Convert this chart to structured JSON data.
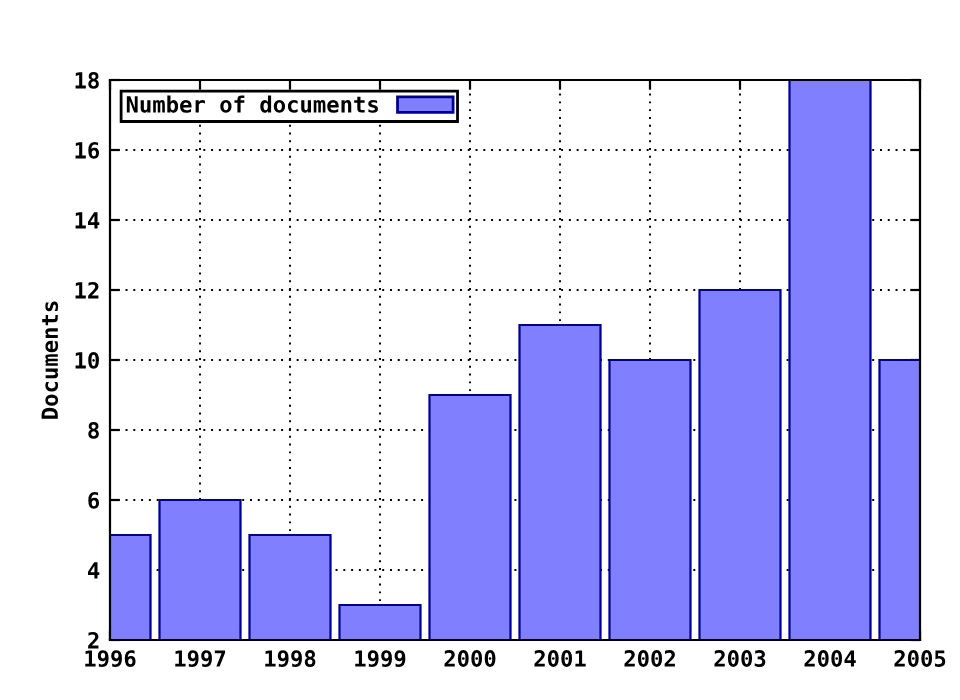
{
  "chart_data": {
    "type": "bar",
    "ylabel": "Documents",
    "x": [
      1996,
      1997,
      1998,
      1999,
      2000,
      2001,
      2002,
      2003,
      2004,
      2005
    ],
    "series": [
      {
        "name": "Number of documents",
        "color": "#8080ff",
        "values": [
          5,
          6,
          5,
          3,
          9,
          11,
          10,
          12,
          18,
          10
        ]
      }
    ],
    "xlim": [
      1996,
      2005
    ],
    "xticks": [
      1996,
      1997,
      1998,
      1999,
      2000,
      2001,
      2002,
      2003,
      2004,
      2005
    ],
    "ylim": [
      2,
      18
    ],
    "yticks": [
      2,
      4,
      6,
      8,
      10,
      12,
      14,
      16,
      18
    ],
    "grid": true,
    "legend": "top left"
  }
}
